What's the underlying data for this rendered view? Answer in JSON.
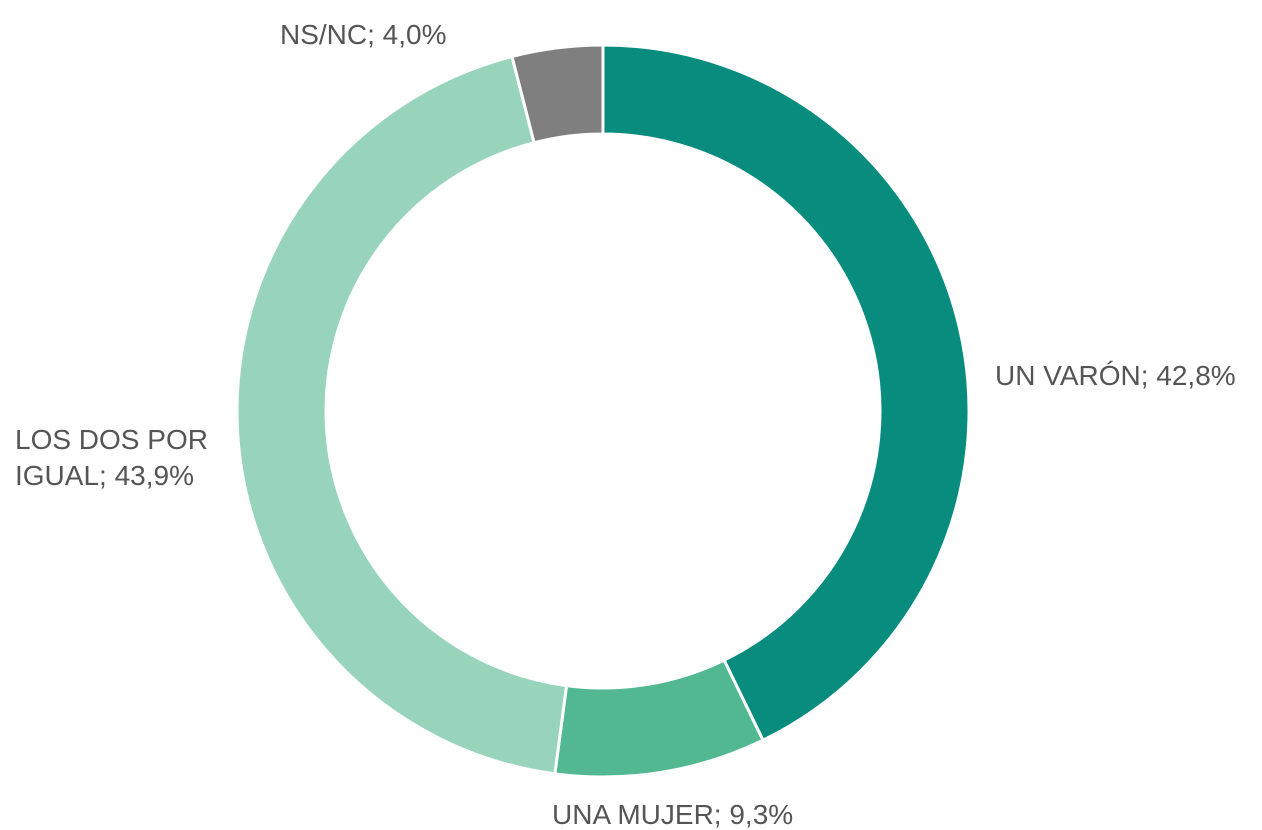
{
  "chart_data": {
    "type": "donut",
    "labels": [
      "UN VARÓN; 42,8%",
      "UNA MUJER; 9,3%",
      "LOS DOS POR IGUAL; 43,9%",
      "NS/NC; 4,0%"
    ],
    "values": [
      42.8,
      9.3,
      43.9,
      4.0
    ],
    "colors": [
      "#078c7e",
      "#52b891",
      "#98d4bb",
      "#7f7f7f"
    ]
  }
}
